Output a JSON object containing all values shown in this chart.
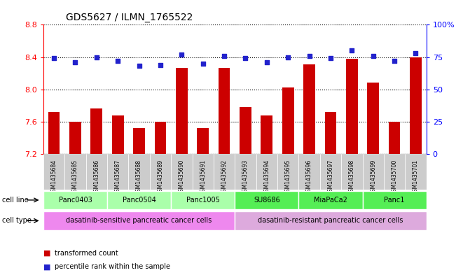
{
  "title": "GDS5627 / ILMN_1765522",
  "samples": [
    "GSM1435684",
    "GSM1435685",
    "GSM1435686",
    "GSM1435687",
    "GSM1435688",
    "GSM1435689",
    "GSM1435690",
    "GSM1435691",
    "GSM1435692",
    "GSM1435693",
    "GSM1435694",
    "GSM1435695",
    "GSM1435696",
    "GSM1435697",
    "GSM1435698",
    "GSM1435699",
    "GSM1435700",
    "GSM1435701"
  ],
  "bar_values": [
    7.72,
    7.6,
    7.76,
    7.68,
    7.52,
    7.6,
    8.27,
    7.52,
    8.27,
    7.78,
    7.68,
    8.02,
    8.31,
    7.72,
    8.38,
    8.08,
    7.6,
    8.4
  ],
  "dot_values": [
    74,
    71,
    75,
    72,
    68,
    69,
    77,
    70,
    76,
    74,
    71,
    75,
    76,
    74,
    80,
    76,
    72,
    78
  ],
  "bar_color": "#cc0000",
  "dot_color": "#2222cc",
  "ylim_left": [
    7.2,
    8.8
  ],
  "ylim_right": [
    0,
    100
  ],
  "yticks_left": [
    7.2,
    7.6,
    8.0,
    8.4,
    8.8
  ],
  "yticks_right": [
    0,
    25,
    50,
    75,
    100
  ],
  "cell_lines": [
    {
      "label": "Panc0403",
      "start": 0,
      "end": 2,
      "color": "#aaffaa"
    },
    {
      "label": "Panc0504",
      "start": 3,
      "end": 5,
      "color": "#aaffaa"
    },
    {
      "label": "Panc1005",
      "start": 6,
      "end": 8,
      "color": "#aaffaa"
    },
    {
      "label": "SU8686",
      "start": 9,
      "end": 11,
      "color": "#55ee55"
    },
    {
      "label": "MiaPaCa2",
      "start": 12,
      "end": 14,
      "color": "#55ee55"
    },
    {
      "label": "Panc1",
      "start": 15,
      "end": 17,
      "color": "#55ee55"
    }
  ],
  "cell_types": [
    {
      "label": "dasatinib-sensitive pancreatic cancer cells",
      "start": 0,
      "end": 8,
      "color": "#ee88ee"
    },
    {
      "label": "dasatinib-resistant pancreatic cancer cells",
      "start": 9,
      "end": 17,
      "color": "#ddaadd"
    }
  ],
  "legend_bar_label": "transformed count",
  "legend_dot_label": "percentile rank within the sample",
  "cell_line_label": "cell line",
  "cell_type_label": "cell type",
  "sample_bg_color": "#cccccc",
  "background_color": "#ffffff",
  "spine_color": "#000000"
}
